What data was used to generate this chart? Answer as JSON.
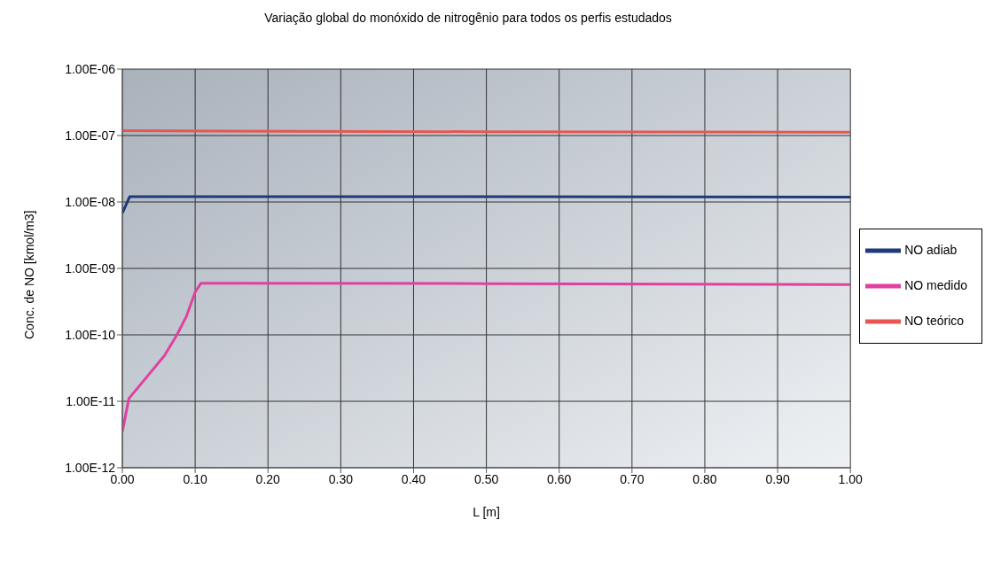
{
  "chart_data": {
    "type": "line",
    "title": "Variação global do monóxido de nitrogênio para todos os perfis estudados",
    "xlabel": "L [m]",
    "ylabel": "Conc. de NO [kmol/m3]",
    "log": "y",
    "grid": true,
    "legend": "right",
    "marker": "none",
    "line_style": "solid",
    "xlim": [
      0,
      1
    ],
    "xticks": [
      {
        "value": 0,
        "label": "0.00"
      },
      {
        "value": 0.1,
        "label": "0.10"
      },
      {
        "value": 0.2,
        "label": "0.20"
      },
      {
        "value": 0.3,
        "label": "0.30"
      },
      {
        "value": 0.4,
        "label": "0.40"
      },
      {
        "value": 0.5,
        "label": "0.50"
      },
      {
        "value": 0.6,
        "label": "0.60"
      },
      {
        "value": 0.7,
        "label": "0.70"
      },
      {
        "value": 0.8,
        "label": "0.80"
      },
      {
        "value": 0.9,
        "label": "0.90"
      },
      {
        "value": 1,
        "label": "1.00"
      }
    ],
    "ylim": [
      1e-12,
      1e-06
    ],
    "yticks": [
      {
        "value": 1e-12,
        "label": "1.00E-12"
      },
      {
        "value": 1e-11,
        "label": "1.00E-11"
      },
      {
        "value": 1e-10,
        "label": "1.00E-10"
      },
      {
        "value": 1e-09,
        "label": "1.00E-09"
      },
      {
        "value": 1e-08,
        "label": "1.00E-08"
      },
      {
        "value": 1e-07,
        "label": "1.00E-07"
      },
      {
        "value": 1e-06,
        "label": "1.00E-06"
      }
    ],
    "series": [
      {
        "name": "NO teórico",
        "color": "#e8564f",
        "x": [
          0,
          0.5,
          1
        ],
        "values": [
          1.18e-07,
          1.14e-07,
          1.12e-07
        ]
      },
      {
        "name": "NO adiab",
        "color": "#1f3a7a",
        "x": [
          0,
          0.01,
          0.5,
          1
        ],
        "values": [
          6.8e-09,
          1.2e-08,
          1.2e-08,
          1.18e-08
        ]
      },
      {
        "name": "NO medido",
        "color": "#e040a0",
        "x": [
          0,
          0.009,
          0.036,
          0.058,
          0.075,
          0.088,
          0.1,
          0.108,
          0.5,
          1
        ],
        "values": [
          3.5e-12,
          1.1e-11,
          2.5e-11,
          4.9e-11,
          1e-10,
          1.9e-10,
          4.4e-10,
          6e-10,
          5.9e-10,
          5.7e-10
        ]
      }
    ]
  }
}
